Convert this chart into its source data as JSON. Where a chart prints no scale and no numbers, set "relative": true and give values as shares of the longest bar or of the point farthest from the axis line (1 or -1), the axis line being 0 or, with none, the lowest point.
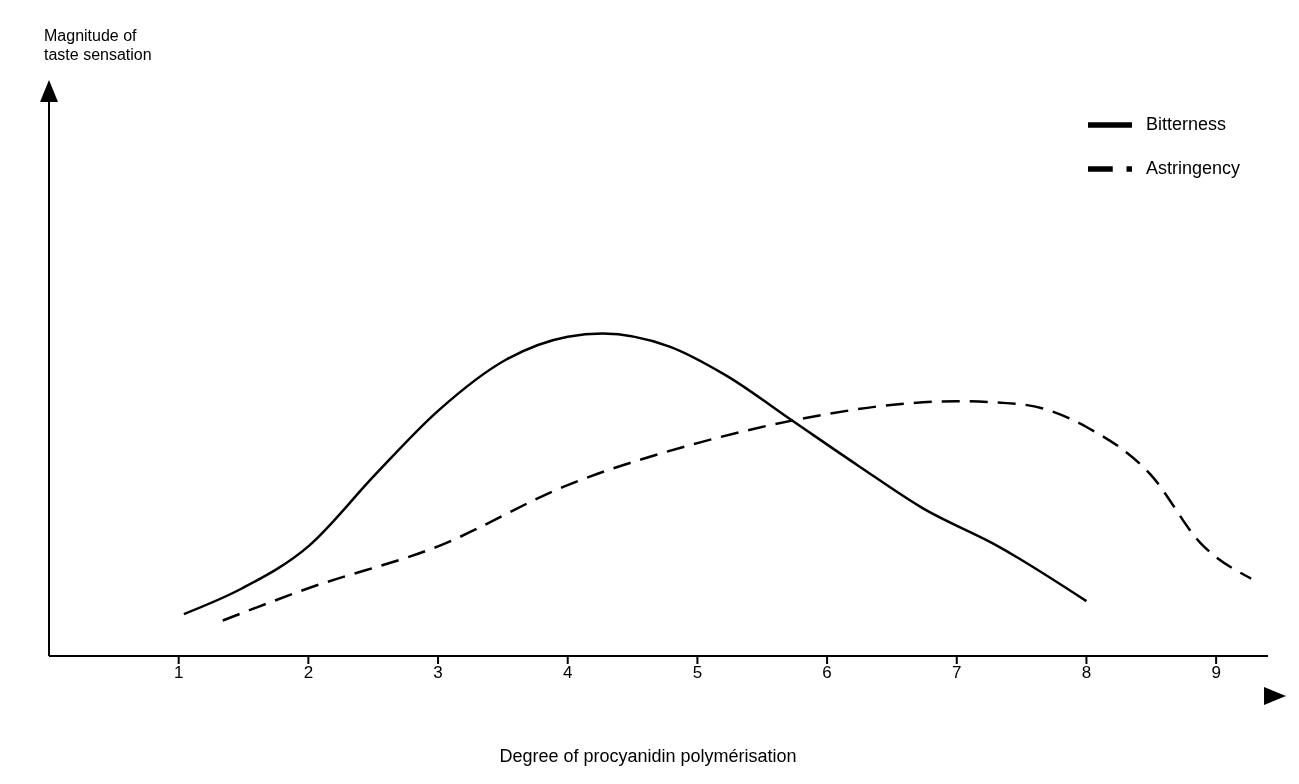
{
  "chart_data": {
    "type": "line",
    "relative": true,
    "xlabel": "Degree of procyanidin polymérisation",
    "annotations": [
      "Magnitude of taste sensation"
    ],
    "xlim": [
      0,
      9.4
    ],
    "xticks": [
      1,
      2,
      3,
      4,
      5,
      6,
      7,
      8,
      9
    ],
    "grid": false,
    "legend": "top right",
    "marker": "none",
    "series": [
      {
        "name": "Bitterness",
        "color": "#000000",
        "line_style": "solid",
        "x": [
          1.04,
          1.49,
          2,
          2.51,
          3,
          3.53,
          4,
          4.27,
          4.78,
          5.22,
          5.73,
          6.24,
          6.73,
          7.32,
          8
        ],
        "values": [
          0.13,
          0.21,
          0.34,
          0.56,
          0.76,
          0.92,
          0.99,
          1,
          0.96,
          0.87,
          0.73,
          0.59,
          0.46,
          0.34,
          0.17
        ]
      },
      {
        "name": "Astringency",
        "color": "#000000",
        "line_style": "dashed",
        "x": [
          1.34,
          2,
          3,
          4,
          5,
          6,
          6.53,
          7,
          7.5,
          8,
          8.5,
          8.88,
          9.27
        ],
        "values": [
          0.11,
          0.21,
          0.34,
          0.53,
          0.66,
          0.75,
          0.78,
          0.79,
          0.78,
          0.71,
          0.56,
          0.35,
          0.24
        ]
      }
    ]
  }
}
